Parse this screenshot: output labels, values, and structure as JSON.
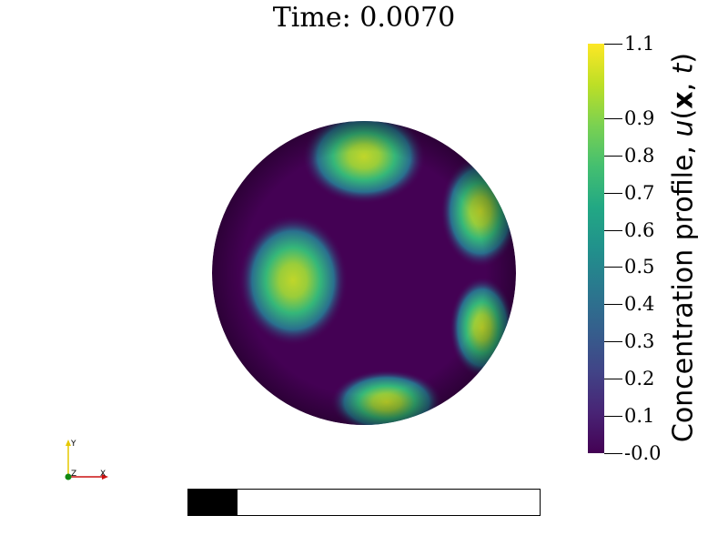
{
  "title": "Time: 0.0070",
  "colorbar": {
    "title": "Concentration profile, u(x, t)",
    "title_symbol": "u",
    "title_vector": "x",
    "title_time": "t",
    "colormap": "viridis",
    "range": [
      -0.0,
      1.1
    ],
    "ticks": [
      {
        "value": 1.1,
        "label": "1.1"
      },
      {
        "value": 0.9,
        "label": "0.9"
      },
      {
        "value": 0.8,
        "label": "0.8"
      },
      {
        "value": 0.7,
        "label": "0.7"
      },
      {
        "value": 0.6,
        "label": "0.6"
      },
      {
        "value": 0.5,
        "label": "0.5"
      },
      {
        "value": 0.4,
        "label": "0.4"
      },
      {
        "value": 0.3,
        "label": "0.3"
      },
      {
        "value": 0.2,
        "label": "0.2"
      },
      {
        "value": 0.1,
        "label": "0.1"
      },
      {
        "value": 0.0,
        "label": "-0.0"
      }
    ]
  },
  "progress": {
    "fraction": 0.14
  },
  "axes": {
    "x_label": "X",
    "y_label": "Y",
    "z_label": "Z",
    "x_color": "#cc1111",
    "y_color": "#e6c800",
    "z_color": "#118811"
  },
  "colors": {
    "background": "#440154",
    "spot_center": "#bddf26",
    "spot_mid": "#44bf70"
  }
}
